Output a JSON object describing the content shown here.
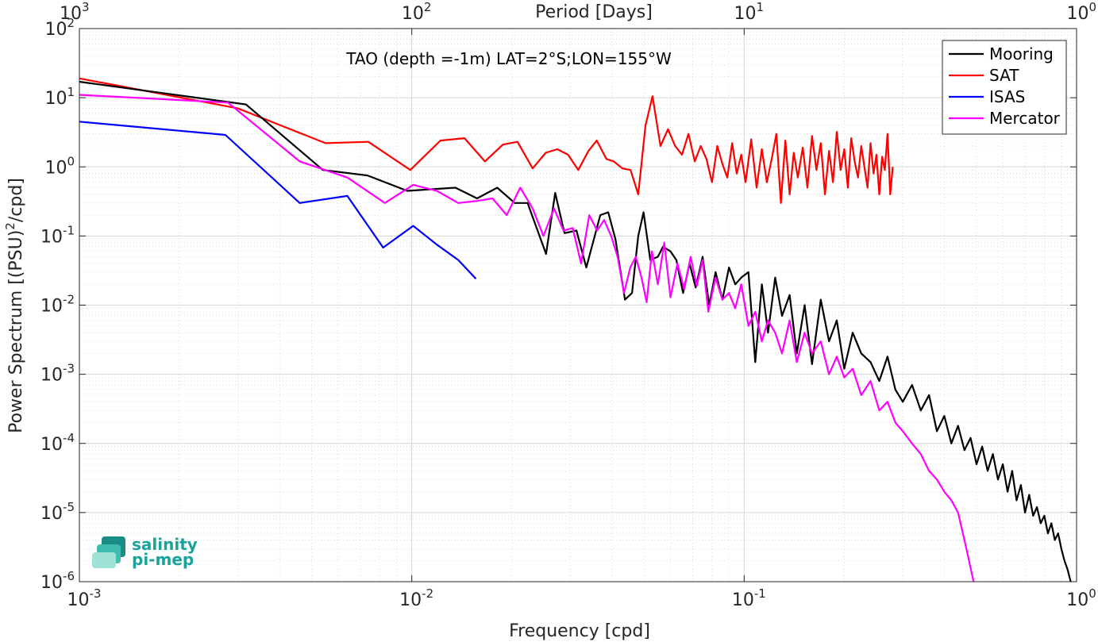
{
  "chart_data": {
    "type": "line",
    "title": "TAO (depth =-1m) LAT=2°S;LON=155°W",
    "xlabel": "Frequency [cpd]",
    "ylabel": "Power Spectrum [(PSU)²/cpd]",
    "ylabel_parts": {
      "pre": "Power Spectrum [(PSU)",
      "sup": "2",
      "post": "/cpd]"
    },
    "top_xlabel": "Period [Days]",
    "x_scale": "log",
    "y_scale": "log",
    "xlim": [
      0.001,
      1
    ],
    "ylim": [
      1e-06,
      100
    ],
    "grid": true,
    "legend_position": "top-right",
    "x_ticks": [
      {
        "value": 0.001,
        "base": "10",
        "exp": "-3"
      },
      {
        "value": 0.01,
        "base": "10",
        "exp": "-2"
      },
      {
        "value": 0.1,
        "base": "10",
        "exp": "-1"
      },
      {
        "value": 1,
        "base": "10",
        "exp": "0"
      }
    ],
    "y_ticks": [
      {
        "value": 1e-06,
        "base": "10",
        "exp": "-6"
      },
      {
        "value": 1e-05,
        "base": "10",
        "exp": "-5"
      },
      {
        "value": 0.0001,
        "base": "10",
        "exp": "-4"
      },
      {
        "value": 0.001,
        "base": "10",
        "exp": "-3"
      },
      {
        "value": 0.01,
        "base": "10",
        "exp": "-2"
      },
      {
        "value": 0.1,
        "base": "10",
        "exp": "-1"
      },
      {
        "value": 1,
        "base": "10",
        "exp": "0"
      },
      {
        "value": 10,
        "base": "10",
        "exp": "1"
      },
      {
        "value": 100,
        "base": "10",
        "exp": "2"
      }
    ],
    "top_ticks": [
      {
        "period": 1000,
        "base": "10",
        "exp": "3"
      },
      {
        "period": 100,
        "base": "10",
        "exp": "2"
      },
      {
        "period": 10,
        "base": "10",
        "exp": "1"
      },
      {
        "period": 1,
        "base": "10",
        "exp": "0"
      }
    ],
    "series": [
      {
        "name": "Mooring",
        "color": "#000000",
        "x": [
          0.001,
          0.00317,
          0.0054,
          0.00736,
          0.0097,
          0.01353,
          0.01572,
          0.01808,
          0.0204,
          0.0223,
          0.02535,
          0.027,
          0.0288,
          0.0313,
          0.0335,
          0.0369,
          0.039,
          0.041,
          0.0438,
          0.046,
          0.048,
          0.0498,
          0.0522,
          0.055,
          0.057,
          0.06,
          0.0625,
          0.0655,
          0.0685,
          0.0715,
          0.075,
          0.0785,
          0.082,
          0.086,
          0.09,
          0.094,
          0.098,
          0.103,
          0.108,
          0.113,
          0.118,
          0.124,
          0.13,
          0.137,
          0.144,
          0.152,
          0.16,
          0.17,
          0.18,
          0.19,
          0.2,
          0.212,
          0.225,
          0.24,
          0.255,
          0.27,
          0.285,
          0.3,
          0.32,
          0.34,
          0.36,
          0.38,
          0.4,
          0.42,
          0.44,
          0.46,
          0.48,
          0.5,
          0.52,
          0.54,
          0.56,
          0.58,
          0.6,
          0.62,
          0.64,
          0.66,
          0.68,
          0.7,
          0.72,
          0.74,
          0.76,
          0.78,
          0.8,
          0.82,
          0.84,
          0.86,
          0.88,
          0.9,
          0.92,
          0.94,
          0.96
        ],
        "y": [
          17,
          8,
          0.9,
          0.75,
          0.45,
          0.5,
          0.35,
          0.5,
          0.3,
          0.3,
          0.055,
          0.42,
          0.11,
          0.12,
          0.035,
          0.2,
          0.22,
          0.09,
          0.012,
          0.015,
          0.1,
          0.22,
          0.045,
          0.05,
          0.07,
          0.06,
          0.045,
          0.015,
          0.04,
          0.018,
          0.05,
          0.01,
          0.03,
          0.012,
          0.035,
          0.02,
          0.025,
          0.03,
          0.0015,
          0.02,
          0.004,
          0.025,
          0.007,
          0.014,
          0.002,
          0.01,
          0.0014,
          0.012,
          0.003,
          0.006,
          0.0012,
          0.004,
          0.002,
          0.0015,
          0.0008,
          0.0018,
          0.0006,
          0.0004,
          0.0007,
          0.0003,
          0.0005,
          0.00015,
          0.00025,
          0.0001,
          0.00018,
          8e-05,
          0.00012,
          5e-05,
          9e-05,
          4e-05,
          7e-05,
          3e-05,
          5e-05,
          2e-05,
          4e-05,
          1.5e-05,
          2.5e-05,
          1e-05,
          1.8e-05,
          9e-06,
          1.2e-05,
          7e-06,
          9e-06,
          5e-06,
          7e-06,
          4e-06,
          5e-06,
          3e-06,
          2e-06,
          1.5e-06,
          1e-06
        ]
      },
      {
        "name": "SAT",
        "color": "#ff0000",
        "x": [
          0.001,
          0.003,
          0.0055,
          0.0074,
          0.0099,
          0.0122,
          0.0144,
          0.0166,
          0.0188,
          0.0208,
          0.0231,
          0.0253,
          0.0274,
          0.0295,
          0.0317,
          0.034,
          0.036,
          0.0385,
          0.0405,
          0.043,
          0.0455,
          0.048,
          0.0505,
          0.053,
          0.056,
          0.059,
          0.062,
          0.065,
          0.068,
          0.071,
          0.074,
          0.077,
          0.08,
          0.083,
          0.086,
          0.089,
          0.092,
          0.095,
          0.098,
          0.101,
          0.105,
          0.109,
          0.113,
          0.117,
          0.121,
          0.125,
          0.129,
          0.133,
          0.137,
          0.141,
          0.145,
          0.15,
          0.155,
          0.16,
          0.165,
          0.17,
          0.175,
          0.18,
          0.185,
          0.19,
          0.195,
          0.2,
          0.205,
          0.21,
          0.215,
          0.22,
          0.225,
          0.23,
          0.235,
          0.24,
          0.245,
          0.25,
          0.255,
          0.26,
          0.265,
          0.27,
          0.275,
          0.28
        ],
        "y": [
          19,
          7,
          2.2,
          2.3,
          0.9,
          2.4,
          2.6,
          1.2,
          2.1,
          2.3,
          0.95,
          1.6,
          1.8,
          1.5,
          0.9,
          1.7,
          2.4,
          1.3,
          1.2,
          0.95,
          0.9,
          0.4,
          4,
          10.5,
          2,
          3.5,
          2,
          1.5,
          3,
          1.2,
          2,
          1.3,
          0.6,
          2,
          1.1,
          0.7,
          2.2,
          0.8,
          1.5,
          0.6,
          2.5,
          0.5,
          1.8,
          0.6,
          1.3,
          3,
          0.3,
          2.4,
          0.4,
          1.6,
          0.7,
          1.9,
          0.5,
          2.8,
          0.9,
          2.2,
          0.4,
          1.7,
          0.6,
          3.2,
          0.9,
          1.8,
          0.5,
          2.6,
          1.2,
          0.7,
          2,
          1,
          0.5,
          2.2,
          0.8,
          1.5,
          0.4,
          1.4,
          0.9,
          3,
          0.4,
          1
        ]
      },
      {
        "name": "ISAS",
        "color": "#0000ff",
        "x": [
          0.001,
          0.00275,
          0.0046,
          0.0064,
          0.0082,
          0.0101,
          0.0119,
          0.0138,
          0.0156
        ],
        "y": [
          4.5,
          2.9,
          0.3,
          0.38,
          0.068,
          0.14,
          0.075,
          0.045,
          0.024
        ]
      },
      {
        "name": "Mercator",
        "color": "#ff00ff",
        "x": [
          0.001,
          0.0028,
          0.0046,
          0.0064,
          0.0083,
          0.0101,
          0.0119,
          0.0138,
          0.0156,
          0.0175,
          0.0193,
          0.0212,
          0.0231,
          0.0249,
          0.0268,
          0.0286,
          0.0305,
          0.0323,
          0.0342,
          0.0361,
          0.0379,
          0.0398,
          0.0416,
          0.0435,
          0.0454,
          0.0472,
          0.0491,
          0.0509,
          0.0528,
          0.055,
          0.0575,
          0.06,
          0.063,
          0.066,
          0.069,
          0.072,
          0.075,
          0.078,
          0.082,
          0.086,
          0.09,
          0.094,
          0.098,
          0.103,
          0.108,
          0.113,
          0.118,
          0.124,
          0.13,
          0.137,
          0.144,
          0.152,
          0.16,
          0.17,
          0.18,
          0.19,
          0.2,
          0.212,
          0.225,
          0.24,
          0.255,
          0.27,
          0.285,
          0.3,
          0.32,
          0.34,
          0.36,
          0.38,
          0.4,
          0.42,
          0.44,
          0.46,
          0.475,
          0.49
        ],
        "y": [
          11,
          8.5,
          1.2,
          0.7,
          0.3,
          0.55,
          0.45,
          0.3,
          0.32,
          0.35,
          0.2,
          0.5,
          0.25,
          0.1,
          0.25,
          0.12,
          0.13,
          0.04,
          0.2,
          0.12,
          0.17,
          0.1,
          0.05,
          0.015,
          0.035,
          0.05,
          0.025,
          0.011,
          0.06,
          0.02,
          0.08,
          0.013,
          0.04,
          0.017,
          0.05,
          0.019,
          0.045,
          0.008,
          0.025,
          0.012,
          0.015,
          0.009,
          0.02,
          0.005,
          0.008,
          0.003,
          0.006,
          0.004,
          0.002,
          0.006,
          0.0015,
          0.004,
          0.002,
          0.003,
          0.001,
          0.0018,
          0.0009,
          0.0012,
          0.0005,
          0.0008,
          0.0003,
          0.0004,
          0.0002,
          0.00015,
          0.0001,
          7e-05,
          4e-05,
          3e-05,
          2e-05,
          1.5e-05,
          1e-05,
          4e-06,
          2e-06,
          1e-06
        ]
      }
    ]
  },
  "logo": {
    "line1": "salinity",
    "line2": "pi-mep"
  }
}
